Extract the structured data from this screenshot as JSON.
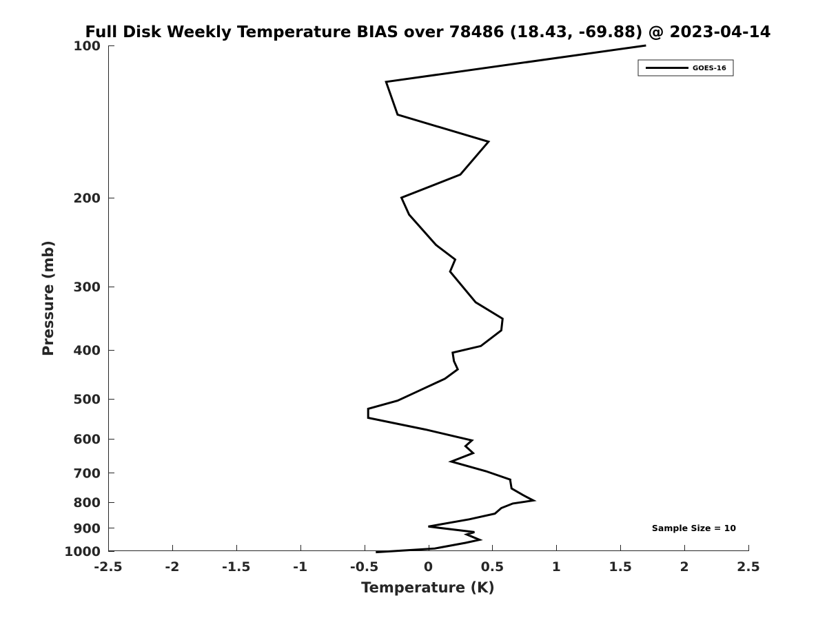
{
  "chart_data": {
    "type": "line",
    "title": "Full Disk Weekly Temperature BIAS over 78486 (18.43, -69.88) @ 2023-04-14",
    "xlabel": "Temperature (K)",
    "ylabel": "Pressure (mb)",
    "xlim": [
      -2.5,
      2.5
    ],
    "ylim": [
      100,
      1000
    ],
    "y_scale": "log",
    "y_reversed": true,
    "xticks": [
      -2.5,
      -2,
      -1.5,
      -1,
      -0.5,
      0,
      0.5,
      1,
      1.5,
      2,
      2.5
    ],
    "xtick_labels": [
      "-2.5",
      "-2",
      "-1.5",
      "-1",
      "-0.5",
      "0",
      "0.5",
      "1",
      "1.5",
      "2",
      "2.5"
    ],
    "yticks": [
      100,
      200,
      300,
      400,
      500,
      600,
      700,
      800,
      900,
      1000
    ],
    "ytick_labels": [
      "100",
      "200",
      "300",
      "400",
      "500",
      "600",
      "700",
      "800",
      "900",
      "1000"
    ],
    "grid": false,
    "legend_position": "top-right",
    "annotation": "Sample Size = 10",
    "series": [
      {
        "name": "GOES-16",
        "color": "#000000",
        "x": [
          1.7,
          -0.33,
          -0.24,
          0.47,
          0.25,
          -0.21,
          -0.15,
          0.06,
          0.21,
          0.17,
          0.37,
          0.58,
          0.57,
          0.41,
          0.19,
          0.2,
          0.23,
          0.13,
          -0.09,
          -0.24,
          -0.47,
          -0.47,
          -0.02,
          0.34,
          0.29,
          0.35,
          0.18,
          0.45,
          0.64,
          0.64,
          0.65,
          0.74,
          0.82,
          0.66,
          0.57,
          0.52,
          0.32,
          0.0,
          0.36,
          0.3,
          0.4,
          0.29,
          0.05,
          -0.41
        ],
        "y": [
          100,
          118,
          137,
          155,
          180,
          200,
          216,
          248,
          265,
          280,
          322,
          347,
          366,
          393,
          405,
          421,
          437,
          456,
          484,
          504,
          523,
          545,
          575,
          604,
          620,
          640,
          665,
          695,
          722,
          725,
          752,
          775,
          794,
          805,
          822,
          843,
          865,
          894,
          917,
          927,
          950,
          963,
          988,
          1005
        ]
      }
    ]
  }
}
